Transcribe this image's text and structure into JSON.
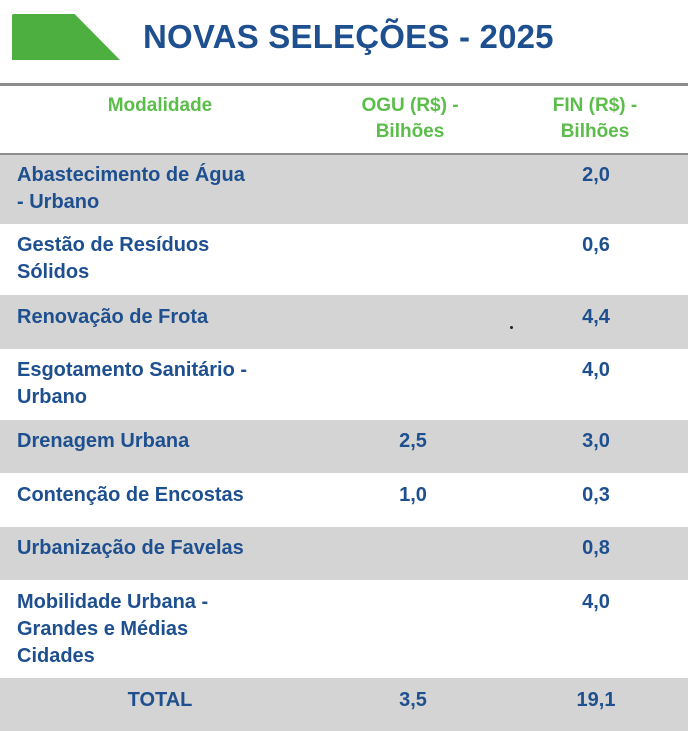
{
  "title": "NOVAS SELEÇÕES - 2025",
  "colors": {
    "accent_green": "#4caf3f",
    "title_blue": "#1e4f8f",
    "header_green": "#5bbd4a",
    "row_grey": "#d4d4d4"
  },
  "columns": {
    "modalidade": "Modalidade",
    "ogu_line1": "OGU (R$) -",
    "ogu_line2": "Bilhões",
    "fin_line1": "FIN (R$) -",
    "fin_line2": "Bilhões"
  },
  "rows": [
    {
      "label_1": "Abastecimento de Água",
      "label_2": "- Urbano",
      "label_3": "",
      "ogu": "",
      "fin": "2,0"
    },
    {
      "label_1": "Gestão de Resíduos",
      "label_2": "Sólidos",
      "label_3": "",
      "ogu": "",
      "fin": "0,6"
    },
    {
      "label_1": "Renovação de Frota",
      "label_2": "",
      "label_3": "",
      "ogu": "",
      "fin": "4,4"
    },
    {
      "label_1": "Esgotamento Sanitário -",
      "label_2": "Urbano",
      "label_3": "",
      "ogu": "",
      "fin": "4,0"
    },
    {
      "label_1": "Drenagem Urbana",
      "label_2": "",
      "label_3": "",
      "ogu": "2,5",
      "fin": "3,0"
    },
    {
      "label_1": "Contenção de Encostas",
      "label_2": "",
      "label_3": "",
      "ogu": "1,0",
      "fin": "0,3"
    },
    {
      "label_1": "Urbanização de Favelas",
      "label_2": "",
      "label_3": "",
      "ogu": "",
      "fin": "0,8"
    },
    {
      "label_1": "Mobilidade Urbana -",
      "label_2": "Grandes e Médias",
      "label_3": "Cidades",
      "ogu": "",
      "fin": "4,0"
    }
  ],
  "total": {
    "label": "TOTAL",
    "ogu": "3,5",
    "fin": "19,1"
  }
}
